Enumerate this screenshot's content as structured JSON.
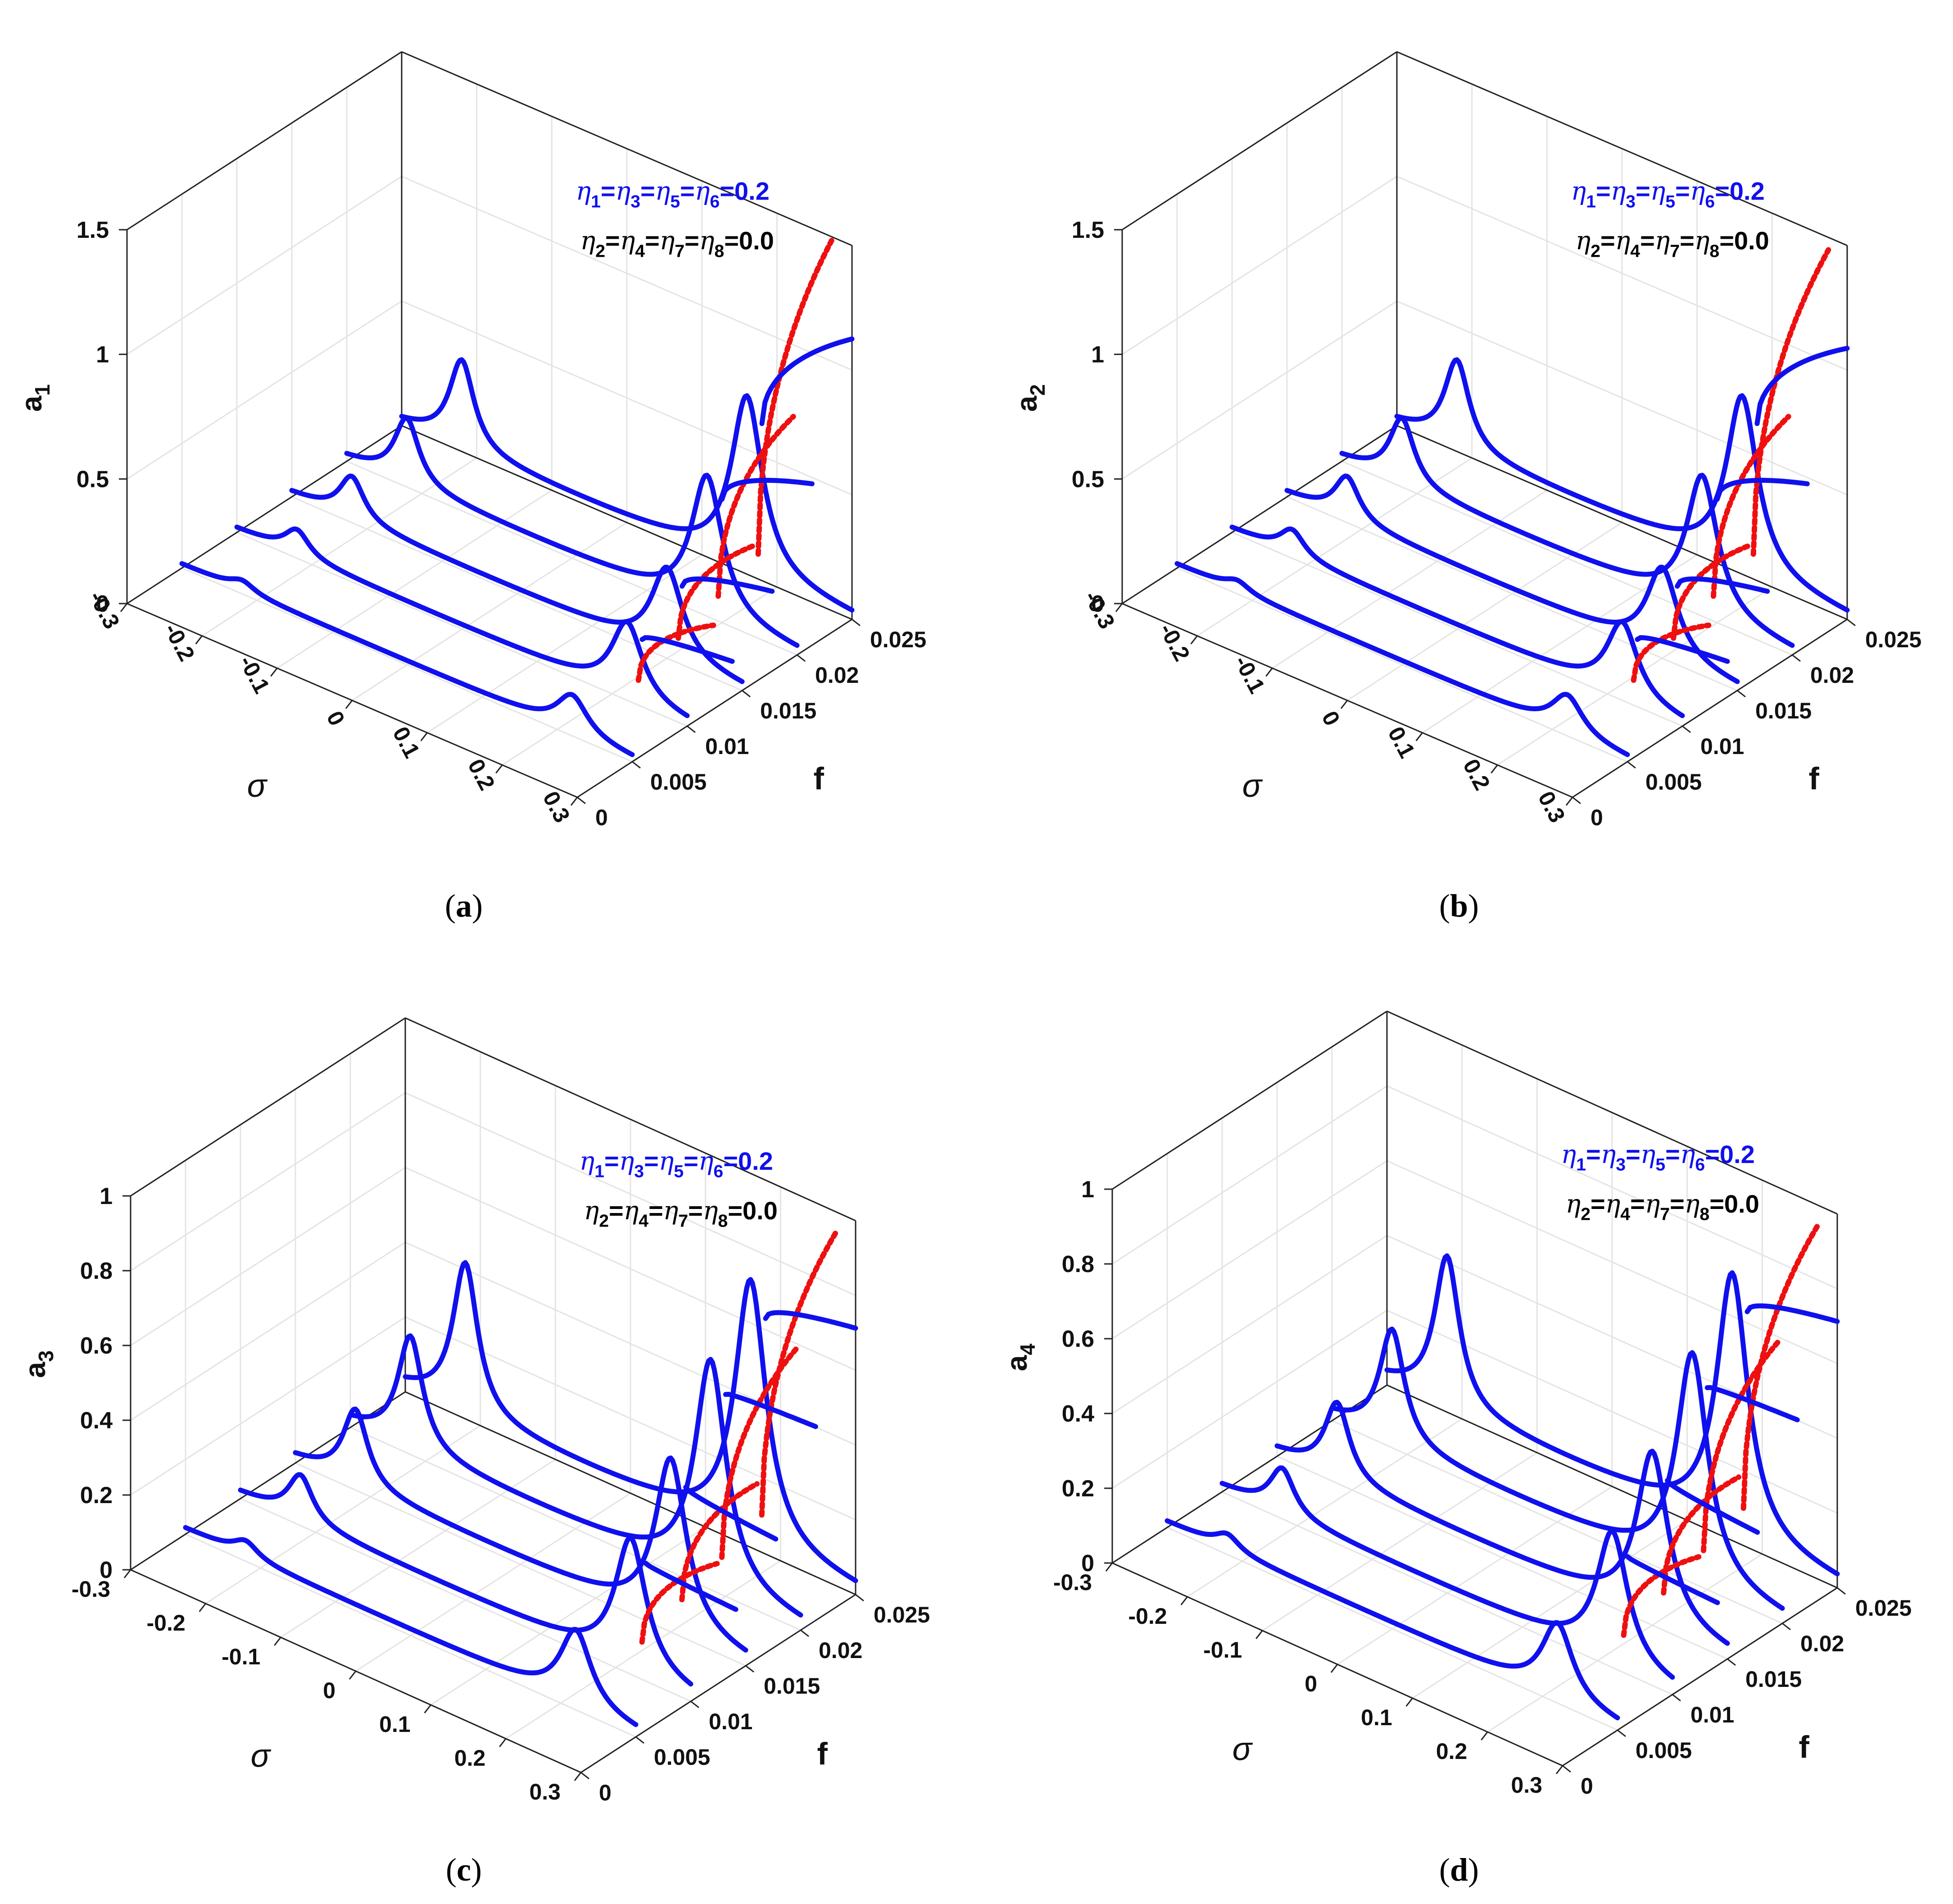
{
  "figure": {
    "caption_labels": [
      "(a)",
      "(b)",
      "(c)",
      "(d)"
    ]
  },
  "chart_data": [
    {
      "id": "a",
      "type": "line",
      "projection": "3d-waterfall",
      "zlabel": "a",
      "zlabel_sub": "1",
      "xlabel": "σ",
      "ylabel": "f",
      "xlim": [
        -0.3,
        0.3
      ],
      "ylim": [
        0,
        0.025
      ],
      "zlim": [
        0,
        1.5
      ],
      "x_ticks": [
        "-0.3",
        "-0.2",
        "-0.1",
        "0",
        "0.1",
        "0.2",
        "0.3"
      ],
      "y_ticks": [
        "0",
        "0.005",
        "0.01",
        "0.015",
        "0.02",
        "0.025"
      ],
      "z_ticks": [
        "0",
        "0.5",
        "1",
        "1.5"
      ],
      "annotation_blue": "η1=η3=η5=η6=0.2",
      "annotation_black": "η2=η4=η7=η8=0.0",
      "stable_color": "#1010ee",
      "unstable_color": "#ee1010",
      "series": [
        {
          "f": 0.005,
          "peak1_sigma": -0.22,
          "peak1_amp": 0.04,
          "peak2_sigma": 0.22,
          "peak2_amp": 0.15,
          "jump_amp": 0.0
        },
        {
          "f": 0.01,
          "peak1_sigma": -0.22,
          "peak1_amp": 0.1,
          "peak2_sigma": 0.22,
          "peak2_amp": 0.3,
          "jump_amp": 0.45
        },
        {
          "f": 0.015,
          "peak1_sigma": -0.22,
          "peak1_amp": 0.17,
          "peak2_sigma": 0.2,
          "peak2_amp": 0.35,
          "jump_amp": 0.6
        },
        {
          "f": 0.02,
          "peak1_sigma": -0.22,
          "peak1_amp": 0.26,
          "peak2_sigma": 0.18,
          "peak2_amp": 0.55,
          "jump_amp": 0.95
        },
        {
          "f": 0.025,
          "peak1_sigma": -0.22,
          "peak1_amp": 0.35,
          "peak2_sigma": 0.16,
          "peak2_amp": 0.7,
          "jump_amp": 1.5
        }
      ]
    },
    {
      "id": "b",
      "type": "line",
      "projection": "3d-waterfall",
      "zlabel": "a",
      "zlabel_sub": "2",
      "xlabel": "σ",
      "ylabel": "f",
      "xlim": [
        -0.3,
        0.3
      ],
      "ylim": [
        0,
        0.025
      ],
      "zlim": [
        0,
        1.5
      ],
      "x_ticks": [
        "-0.3",
        "-0.2",
        "-0.1",
        "0",
        "0.1",
        "0.2",
        "0.3"
      ],
      "y_ticks": [
        "0",
        "0.005",
        "0.01",
        "0.015",
        "0.02",
        "0.025"
      ],
      "z_ticks": [
        "0",
        "0.5",
        "1",
        "1.5"
      ],
      "annotation_blue": "η1=η3=η5=η6=0.2",
      "annotation_black": "η2=η4=η7=η8=0.0",
      "stable_color": "#1010ee",
      "unstable_color": "#ee1010",
      "series": [
        {
          "f": 0.005,
          "peak1_sigma": -0.22,
          "peak1_amp": 0.04,
          "peak2_sigma": 0.22,
          "peak2_amp": 0.15,
          "jump_amp": 0.0
        },
        {
          "f": 0.01,
          "peak1_sigma": -0.22,
          "peak1_amp": 0.1,
          "peak2_sigma": 0.22,
          "peak2_amp": 0.3,
          "jump_amp": 0.45
        },
        {
          "f": 0.015,
          "peak1_sigma": -0.22,
          "peak1_amp": 0.17,
          "peak2_sigma": 0.2,
          "peak2_amp": 0.35,
          "jump_amp": 0.6
        },
        {
          "f": 0.02,
          "peak1_sigma": -0.22,
          "peak1_amp": 0.26,
          "peak2_sigma": 0.18,
          "peak2_amp": 0.55,
          "jump_amp": 0.95
        },
        {
          "f": 0.025,
          "peak1_sigma": -0.22,
          "peak1_amp": 0.35,
          "peak2_sigma": 0.16,
          "peak2_amp": 0.7,
          "jump_amp": 1.45
        }
      ]
    },
    {
      "id": "c",
      "type": "line",
      "projection": "3d-waterfall",
      "zlabel": "a",
      "zlabel_sub": "3",
      "xlabel": "σ",
      "ylabel": "f",
      "xlim": [
        -0.3,
        0.3
      ],
      "ylim": [
        0,
        0.025
      ],
      "zlim": [
        0,
        1
      ],
      "x_ticks": [
        "-0.3",
        "-0.2",
        "-0.1",
        "0",
        "0.1",
        "0.2",
        "0.3"
      ],
      "y_ticks": [
        "0",
        "0.005",
        "0.01",
        "0.015",
        "0.02",
        "0.025"
      ],
      "z_ticks": [
        "0",
        "0.2",
        "0.4",
        "0.6",
        "0.8",
        "1"
      ],
      "annotation_blue": "η1=η3=η5=η6=0.2",
      "annotation_black": "η2=η4=η7=η8=0.0",
      "stable_color": "#1010ee",
      "unstable_color": "#ee1010",
      "series": [
        {
          "f": 0.005,
          "peak1_sigma": -0.22,
          "peak1_amp": 0.04,
          "peak2_sigma": 0.22,
          "peak2_amp": 0.2,
          "jump_amp": 0.0
        },
        {
          "f": 0.01,
          "peak1_sigma": -0.22,
          "peak1_amp": 0.12,
          "peak2_sigma": 0.22,
          "peak2_amp": 0.35,
          "jump_amp": 0.4
        },
        {
          "f": 0.015,
          "peak1_sigma": -0.22,
          "peak1_amp": 0.2,
          "peak2_sigma": 0.2,
          "peak2_amp": 0.45,
          "jump_amp": 0.5
        },
        {
          "f": 0.02,
          "peak1_sigma": -0.22,
          "peak1_amp": 0.3,
          "peak2_sigma": 0.18,
          "peak2_amp": 0.6,
          "jump_amp": 0.75
        },
        {
          "f": 0.025,
          "peak1_sigma": -0.22,
          "peak1_amp": 0.4,
          "peak2_sigma": 0.16,
          "peak2_amp": 0.7,
          "jump_amp": 0.95
        }
      ]
    },
    {
      "id": "d",
      "type": "line",
      "projection": "3d-waterfall",
      "zlabel": "a",
      "zlabel_sub": "4",
      "xlabel": "σ",
      "ylabel": "f",
      "xlim": [
        -0.3,
        0.3
      ],
      "ylim": [
        0,
        0.025
      ],
      "zlim": [
        0,
        1
      ],
      "x_ticks": [
        "-0.3",
        "-0.2",
        "-0.1",
        "0",
        "0.1",
        "0.2",
        "0.3"
      ],
      "y_ticks": [
        "0",
        "0.005",
        "0.01",
        "0.015",
        "0.02",
        "0.025"
      ],
      "z_ticks": [
        "0",
        "0.2",
        "0.4",
        "0.6",
        "0.8",
        "1"
      ],
      "annotation_blue": "η1=η3=η5=η6=0.2",
      "annotation_black": "η2=η4=η7=η8=0.0",
      "stable_color": "#1010ee",
      "unstable_color": "#ee1010",
      "series": [
        {
          "f": 0.005,
          "peak1_sigma": -0.22,
          "peak1_amp": 0.04,
          "peak2_sigma": 0.22,
          "peak2_amp": 0.2,
          "jump_amp": 0.0
        },
        {
          "f": 0.01,
          "peak1_sigma": -0.22,
          "peak1_amp": 0.12,
          "peak2_sigma": 0.22,
          "peak2_amp": 0.35,
          "jump_amp": 0.4
        },
        {
          "f": 0.015,
          "peak1_sigma": -0.22,
          "peak1_amp": 0.2,
          "peak2_sigma": 0.2,
          "peak2_amp": 0.45,
          "jump_amp": 0.5
        },
        {
          "f": 0.02,
          "peak1_sigma": -0.22,
          "peak1_amp": 0.3,
          "peak2_sigma": 0.18,
          "peak2_amp": 0.6,
          "jump_amp": 0.75
        },
        {
          "f": 0.025,
          "peak1_sigma": -0.22,
          "peak1_amp": 0.4,
          "peak2_sigma": 0.16,
          "peak2_amp": 0.7,
          "jump_amp": 0.95
        }
      ]
    }
  ]
}
